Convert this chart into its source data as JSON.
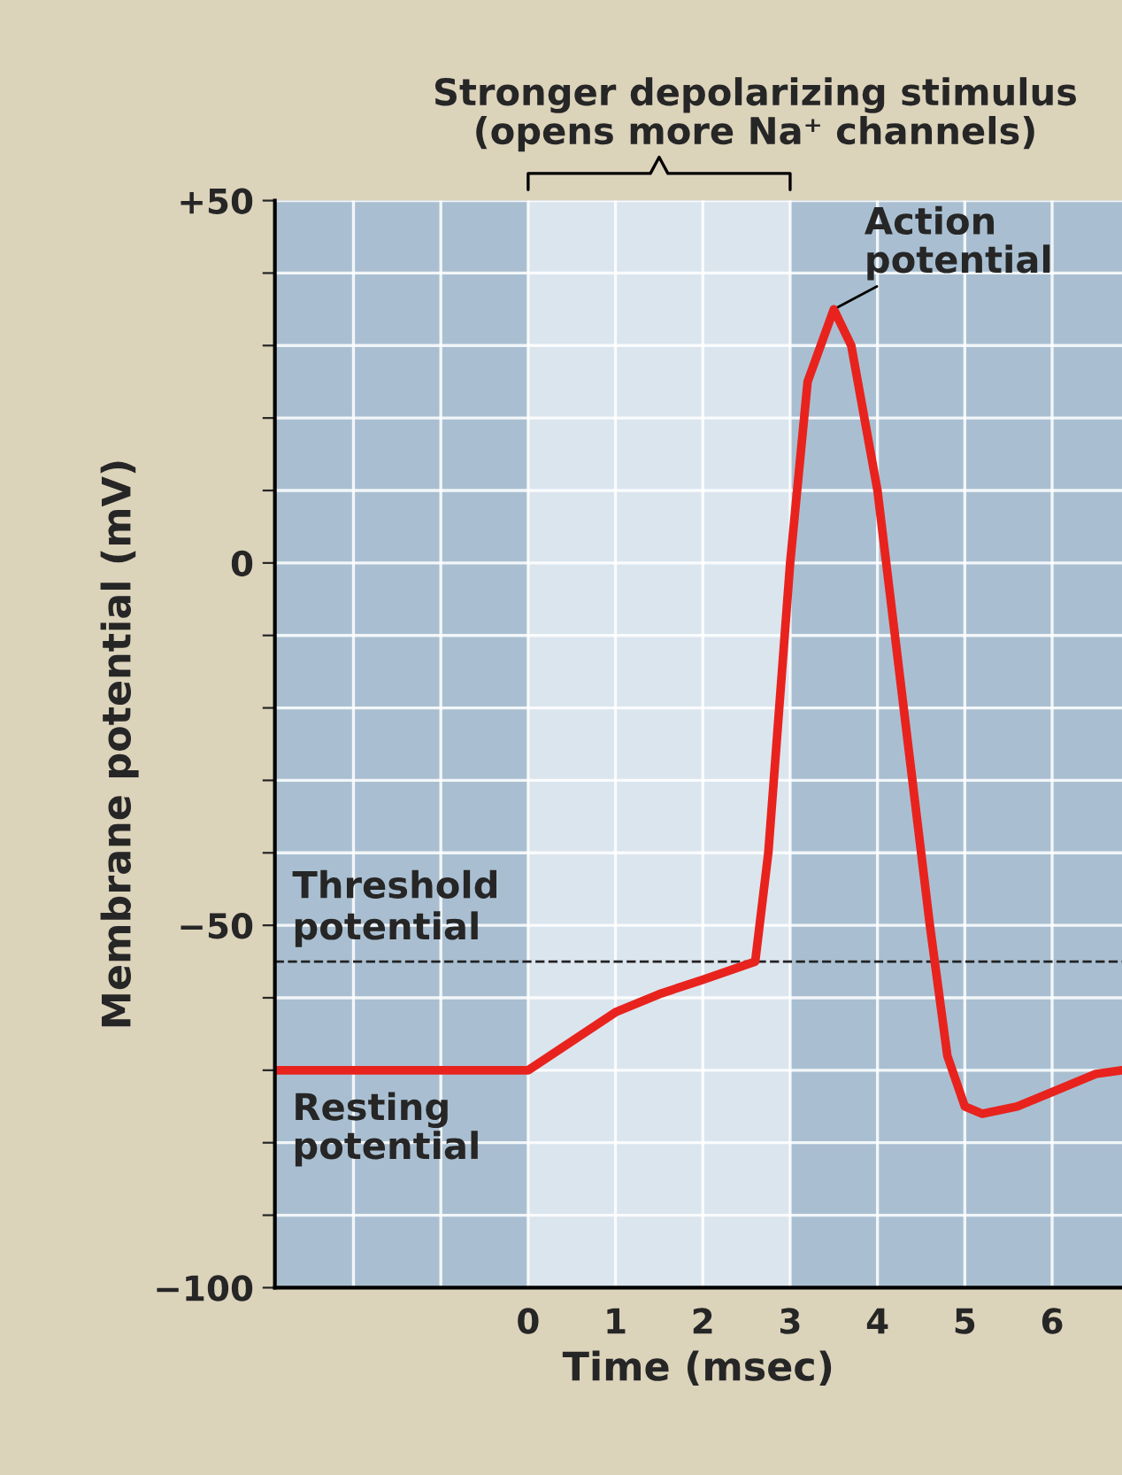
{
  "chart_data": {
    "type": "line",
    "xlabel": "Time (msec)",
    "ylabel": "Membrane potential (mV)",
    "x": [
      -2.9,
      0,
      0.5,
      1,
      1.5,
      2,
      2.6,
      2.75,
      3,
      3.2,
      3.5,
      3.7,
      4,
      4.3,
      4.6,
      4.8,
      5,
      5.2,
      5.6,
      6,
      6.5,
      6.8
    ],
    "series": [
      {
        "color": "#e8231e",
        "values": [
          -70,
          -70,
          -66,
          -62,
          -59.5,
          -57.5,
          -55,
          -40,
          0,
          25,
          35,
          30,
          10,
          -20,
          -50,
          -68,
          -75,
          -76,
          -75,
          -73,
          -70.5,
          -70
        ]
      }
    ],
    "xlim": [
      -2.9,
      6.8
    ],
    "xticks": [
      {
        "value": -2,
        "label": null
      },
      {
        "value": -1,
        "label": null
      },
      0,
      1,
      2,
      3,
      4,
      5,
      6
    ],
    "ylim": [
      -100,
      50
    ],
    "yticks": [
      {
        "value": -100,
        "label": "−100"
      },
      {
        "value": -90,
        "label": null
      },
      {
        "value": -80,
        "label": null
      },
      {
        "value": -70,
        "label": null
      },
      {
        "value": -60,
        "label": null
      },
      {
        "value": -50,
        "label": "−50"
      },
      {
        "value": -40,
        "label": null
      },
      {
        "value": -30,
        "label": null
      },
      {
        "value": -20,
        "label": null
      },
      {
        "value": -10,
        "label": null
      },
      0,
      {
        "value": 10,
        "label": null
      },
      {
        "value": 20,
        "label": null
      },
      {
        "value": 30,
        "label": null
      },
      {
        "value": 40,
        "label": null
      },
      {
        "value": 50,
        "label": "+50"
      }
    ],
    "grid": true,
    "marker": "none",
    "line_style": "solid",
    "bands": [
      {
        "axis": "x",
        "from": 0,
        "to": 3,
        "label": "Stronger depolarizing stimulus\n(opens more Na⁺ channels)",
        "color": "#dbe5ee"
      }
    ],
    "ref_lines": [
      {
        "axis": "y",
        "value": -55,
        "label": "Threshold\npotential",
        "line_style": "dashed",
        "color": "#222222"
      }
    ],
    "annotations": [
      {
        "text": "Action\npotential",
        "x": 3.5,
        "y": 35
      },
      {
        "text": "Resting\npotential",
        "x": -2.9,
        "y": -70
      }
    ]
  }
}
